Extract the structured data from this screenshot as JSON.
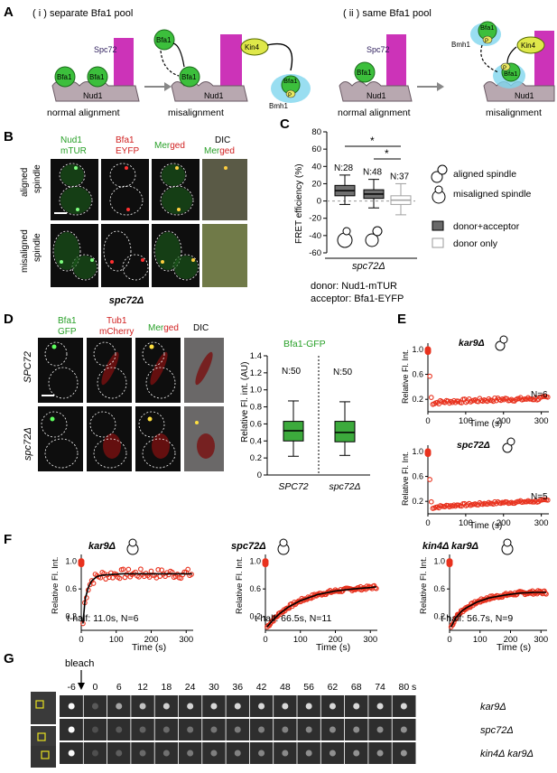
{
  "panels": {
    "A": {
      "label": "A",
      "left_title": "( i )   separate Bfa1 pool",
      "right_title": "( ii )   same Bfa1 pool",
      "bfa1": "Bfa1",
      "spc72": "Spc72",
      "nud1": "Nud1",
      "kin4": "Kin4",
      "bmh1": "Bmh1",
      "p": "P",
      "normal": "normal alignment",
      "mis": "misalignment"
    },
    "B": {
      "label": "B",
      "col1a": "Nud1",
      "col1b": "mTUR",
      "col2a": "Bfa1",
      "col2b": "EYFP",
      "col3a": "Mer",
      "col3b": "ged",
      "col4a": "DIC",
      "col4b_a": "Mer",
      "col4b_b": "ged",
      "row1a": "aligned",
      "row1b": "spindle",
      "row2a": "misaligned",
      "row2b": "spindle",
      "strain": "spc72Δ"
    },
    "C": {
      "label": "C",
      "ylabel": "FRET efficiency (%)",
      "strain": "spc72Δ",
      "legend_aligned": "aligned spindle",
      "legend_mis": "misaligned spindle",
      "legend_da": "donor+acceptor",
      "legend_d": "donor only",
      "donor": "donor: Nud1-mTUR",
      "acceptor": "acceptor: Bfa1-EYFP",
      "star": "*",
      "n": [
        "N:28",
        "N:48",
        "N:37"
      ],
      "yticks": [
        "80",
        "60",
        "40",
        "20",
        "0",
        "-20",
        "-40",
        "-60"
      ]
    },
    "D": {
      "label": "D",
      "col1a": "Bfa1",
      "col1b": "GFP",
      "col2a": "Tub1",
      "col2b": "mCherry",
      "col3a": "Mer",
      "col3b": "ged",
      "col4": "DIC",
      "row1": "SPC72",
      "row2": "spc72Δ",
      "title": "Bfa1-GFP",
      "ylabel": "Relative Fl. int. (AU)",
      "n": [
        "N:50",
        "N:50"
      ],
      "yticks": [
        "1.4",
        "1.2",
        "1.0",
        "0.8",
        "0.6",
        "0.4",
        "0.2",
        "0"
      ],
      "xcats": [
        "SPC72",
        "spc72Δ"
      ]
    },
    "E": {
      "label": "E",
      "ylabel": "Relative Fl. Int.",
      "xlabel": "Time (s)",
      "top_strain": "kar9Δ",
      "top_n": "N=6",
      "bottom_strain": "spc72Δ",
      "bottom_n": "N=5",
      "yticks": [
        "1.0",
        "0.6",
        "0.2"
      ],
      "xticks": [
        "0",
        "100",
        "200",
        "300"
      ]
    },
    "F": {
      "label": "F",
      "ylabel": "Relative Fl. Int.",
      "xlabel": "Time (s)",
      "p1_strain": "kar9Δ",
      "p1_note": "t-half: 11.0s, N=6",
      "p2_strain": "spc72Δ",
      "p2_note": "t-half: 66.5s, N=11",
      "p3_strain": "kin4Δ kar9Δ",
      "p3_note": "t-half: 56.7s, N=9",
      "yticks": [
        "1.0",
        "0.6",
        "0.2"
      ],
      "xticks": [
        "0",
        "100",
        "200",
        "300"
      ]
    },
    "G": {
      "label": "G",
      "bleach": "bleach",
      "times": [
        "-6",
        "0",
        "6",
        "12",
        "18",
        "24",
        "30",
        "36",
        "42",
        "48",
        "56",
        "62",
        "68",
        "74",
        "80"
      ],
      "unit": "s",
      "rows": [
        "kar9Δ",
        "spc72Δ",
        "kin4Δ kar9Δ"
      ]
    }
  },
  "chart_data": [
    {
      "type": "box",
      "panel": "C",
      "ylabel": "FRET efficiency (%)",
      "ylim": [
        -60,
        80
      ],
      "series": [
        {
          "group": "aligned spindle, donor+acceptor",
          "n": 28,
          "whisker_low": -4,
          "q1": 6,
          "median": 12,
          "q3": 18,
          "whisker_high": 30
        },
        {
          "group": "misaligned spindle, donor+acceptor",
          "n": 48,
          "whisker_low": -8,
          "q1": 3,
          "median": 8,
          "q3": 13,
          "whisker_high": 25
        },
        {
          "group": "donor only",
          "n": 37,
          "whisker_low": -16,
          "q1": -4,
          "median": 1,
          "q3": 6,
          "whisker_high": 20
        }
      ]
    },
    {
      "type": "box",
      "panel": "D",
      "title": "Bfa1-GFP",
      "ylabel": "Relative Fl. int. (AU)",
      "ylim": [
        0,
        1.4
      ],
      "categories": [
        "SPC72",
        "spc72Δ"
      ],
      "series": [
        {
          "group": "SPC72",
          "n": 50,
          "whisker_low": 0.22,
          "q1": 0.4,
          "median": 0.52,
          "q3": 0.63,
          "whisker_high": 0.87
        },
        {
          "group": "spc72Δ",
          "n": 50,
          "whisker_low": 0.23,
          "q1": 0.39,
          "median": 0.5,
          "q3": 0.63,
          "whisker_high": 0.86
        }
      ]
    },
    {
      "type": "scatter",
      "panel": "E-top",
      "title": "kar9Δ",
      "xlabel": "Time (s)",
      "ylabel": "Relative Fl. Int.",
      "xlim": [
        0,
        320
      ],
      "ylim": [
        0,
        1.1
      ],
      "series": [
        {
          "x": [
            0,
            10,
            40,
            80,
            120,
            160,
            200,
            240,
            280,
            310
          ],
          "y": [
            1.0,
            0.14,
            0.16,
            0.17,
            0.18,
            0.19,
            0.2,
            0.2,
            0.21,
            0.22
          ]
        }
      ]
    },
    {
      "type": "scatter",
      "panel": "E-bottom",
      "title": "spc72Δ",
      "xlabel": "Time (s)",
      "ylabel": "Relative Fl. Int.",
      "xlim": [
        0,
        320
      ],
      "ylim": [
        0,
        1.1
      ],
      "series": [
        {
          "x": [
            0,
            10,
            40,
            80,
            120,
            160,
            200,
            240,
            280,
            310
          ],
          "y": [
            1.0,
            0.1,
            0.12,
            0.14,
            0.15,
            0.17,
            0.18,
            0.19,
            0.2,
            0.21
          ]
        }
      ]
    },
    {
      "type": "line",
      "panel": "F-1",
      "title": "kar9Δ",
      "xlabel": "Time (s)",
      "ylabel": "Relative Fl. Int.",
      "xlim": [
        0,
        320
      ],
      "ylim": [
        0,
        1.1
      ],
      "series": [
        {
          "x": [
            0,
            5,
            11,
            20,
            30,
            45,
            60,
            90,
            120,
            160,
            200,
            250,
            300
          ],
          "y": [
            1.0,
            0.1,
            0.45,
            0.62,
            0.72,
            0.78,
            0.8,
            0.81,
            0.82,
            0.82,
            0.82,
            0.82,
            0.82
          ]
        }
      ]
    },
    {
      "type": "line",
      "panel": "F-2",
      "title": "spc72Δ",
      "xlabel": "Time (s)",
      "ylabel": "Relative Fl. Int.",
      "xlim": [
        0,
        320
      ],
      "ylim": [
        0,
        1.1
      ],
      "series": [
        {
          "x": [
            0,
            5,
            20,
            40,
            66.5,
            100,
            150,
            200,
            250,
            300,
            315
          ],
          "y": [
            1.0,
            0.05,
            0.14,
            0.24,
            0.34,
            0.43,
            0.52,
            0.57,
            0.6,
            0.62,
            0.63
          ]
        }
      ]
    },
    {
      "type": "line",
      "panel": "F-3",
      "title": "kin4Δ kar9Δ",
      "xlabel": "Time (s)",
      "ylabel": "Relative Fl. Int.",
      "xlim": [
        0,
        320
      ],
      "ylim": [
        0,
        1.1
      ],
      "series": [
        {
          "x": [
            0,
            5,
            20,
            40,
            56.7,
            90,
            130,
            180,
            230,
            280,
            310
          ],
          "y": [
            1.0,
            0.05,
            0.18,
            0.28,
            0.33,
            0.41,
            0.47,
            0.51,
            0.54,
            0.55,
            0.55
          ]
        }
      ]
    }
  ]
}
